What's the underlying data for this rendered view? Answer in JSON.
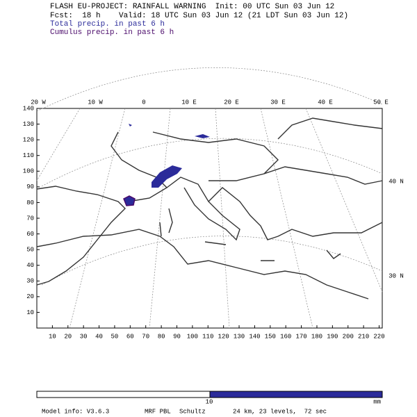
{
  "header": {
    "line1": "FLASH EU-PROJECT: RAINFALL WARNING  Init: 00 UTC Sun 03 Jun 12",
    "line2": "Fcst:  18 h    Valid: 18 UTC Sun 03 Jun 12 (21 LDT Sun 03 Jun 12)",
    "legend_total": "Total precip. in past 6 h",
    "legend_cumulus": "Cumulus precip. in past 6 h"
  },
  "grid": {
    "x_ticks": [
      10,
      20,
      30,
      40,
      50,
      60,
      70,
      80,
      90,
      100,
      110,
      120,
      130,
      140,
      150,
      160,
      170,
      180,
      190,
      200,
      210,
      220
    ],
    "y_ticks": [
      10,
      20,
      30,
      40,
      50,
      60,
      70,
      80,
      90,
      100,
      110,
      120,
      130,
      140
    ],
    "x_range": [
      0,
      222
    ],
    "y_range": [
      0,
      140
    ]
  },
  "longitude_labels": [
    "20 W",
    "10 W",
    "0",
    "10 E",
    "20 E",
    "30 E",
    "40 E",
    "50 E"
  ],
  "latitude_labels": [
    "40 N",
    "30 N"
  ],
  "colorbar": {
    "tick": "10",
    "unit": "mm"
  },
  "footer": {
    "model": "Model info: V3.6.3",
    "pbl": "MRF PBL",
    "author": "Schultz",
    "config": "24 km, 23 levels,  72 sec"
  }
}
